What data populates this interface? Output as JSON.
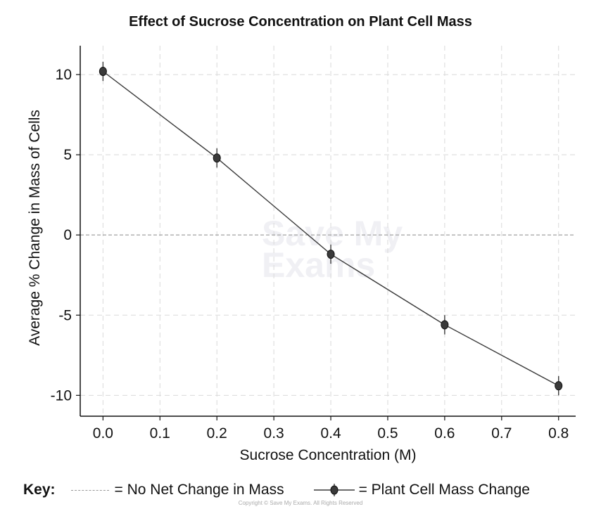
{
  "chart_data": {
    "type": "line",
    "title": "Effect of Sucrose Concentration on Plant Cell Mass",
    "xlabel": "Sucrose Concentration (M)",
    "ylabel": "Average % Change in Mass of Cells",
    "xlim": [
      -0.04,
      0.83
    ],
    "ylim": [
      -11.3,
      11.8
    ],
    "xticks": [
      "0.0",
      "0.1",
      "0.2",
      "0.3",
      "0.4",
      "0.5",
      "0.6",
      "0.7",
      "0.8"
    ],
    "yticks": [
      "10",
      "5",
      "0",
      "-5",
      "-10"
    ],
    "grid": true,
    "series": [
      {
        "name": "Plant Cell Mass Change",
        "x": [
          0.0,
          0.2,
          0.4,
          0.6,
          0.8
        ],
        "y": [
          10.2,
          4.8,
          -1.2,
          -5.6,
          -9.4
        ],
        "error": [
          0.6,
          0.6,
          0.6,
          0.6,
          0.6
        ],
        "color": "#3a3a3a"
      }
    ],
    "reference_line": {
      "y": 0,
      "label": "No Net Change in Mass",
      "style": "dashed",
      "color": "#999999"
    },
    "legend": {
      "title": "Key:",
      "items": [
        "= No Net Change in Mass",
        "= Plant Cell Mass Change"
      ],
      "placement": "bottom"
    }
  },
  "watermark": {
    "line1": "Save My",
    "line2": "Exams"
  },
  "copyright": "Copyright © Save My Exams. All Rights Reserved"
}
